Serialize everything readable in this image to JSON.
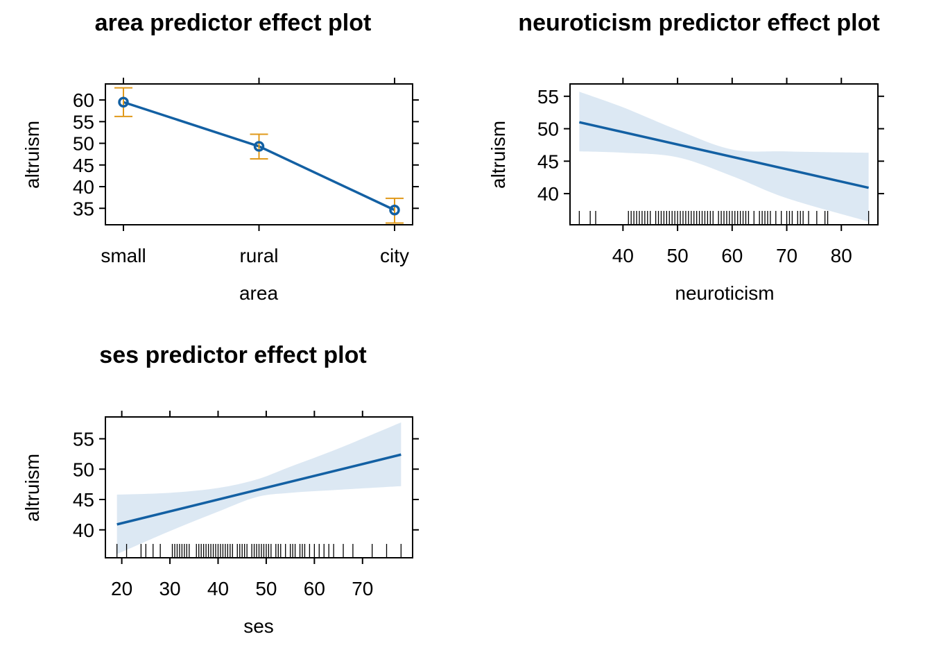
{
  "chart_data": [
    {
      "type": "line",
      "title": "area predictor effect plot",
      "xlabel": "area",
      "ylabel": "altruism",
      "categories": [
        "small",
        "rural",
        "city"
      ],
      "values": [
        59.5,
        49.3,
        34.6
      ],
      "lower": [
        56.2,
        46.4,
        31.6
      ],
      "upper": [
        62.8,
        52.1,
        37.3
      ],
      "ylim": [
        31.2,
        63.7
      ],
      "yticks": [
        35,
        40,
        45,
        50,
        55,
        60
      ],
      "colors": {
        "fit": "#1360a3",
        "ci": "#e0991a"
      }
    },
    {
      "type": "line",
      "title": "neuroticism predictor effect plot",
      "xlabel": "neuroticism",
      "ylabel": "altruism",
      "x": [
        32,
        85
      ],
      "y": [
        51.0,
        40.9
      ],
      "band_x": [
        32,
        40,
        50,
        60,
        70,
        85
      ],
      "band_lower": [
        46.5,
        46.3,
        45.6,
        42.7,
        39.3,
        35.7
      ],
      "band_upper": [
        55.7,
        53.3,
        49.8,
        46.8,
        46.5,
        46.3
      ],
      "xlim": [
        30.3,
        86.7
      ],
      "ylim": [
        35.2,
        56.9
      ],
      "xticks": [
        40,
        50,
        60,
        70,
        80
      ],
      "yticks": [
        40,
        45,
        50,
        55
      ],
      "rug": [
        32,
        34,
        35,
        41,
        41.5,
        42,
        42.5,
        43,
        43.5,
        44,
        44.5,
        45,
        46,
        46.5,
        47,
        47.5,
        48,
        48.5,
        49,
        49.5,
        50,
        50.5,
        51,
        51.5,
        52,
        52.5,
        53,
        53.5,
        54,
        54.5,
        55,
        55.5,
        56,
        56.5,
        57.5,
        58,
        58.5,
        59,
        59.5,
        60,
        60.5,
        61,
        61.5,
        62,
        62.5,
        63,
        64,
        65,
        65.5,
        66,
        66.5,
        67,
        68,
        69,
        70,
        70.5,
        71,
        72,
        72.5,
        73,
        74,
        75.5,
        77,
        77.5,
        85
      ],
      "colors": {
        "fit": "#1360a3",
        "band": "#dce8f3"
      }
    },
    {
      "type": "line",
      "title": "ses predictor effect plot",
      "xlabel": "ses",
      "ylabel": "altruism",
      "x": [
        19,
        78
      ],
      "y": [
        40.9,
        52.4
      ],
      "band_x": [
        19,
        30,
        40,
        48,
        55,
        65,
        78
      ],
      "band_lower": [
        36.0,
        39.8,
        43.0,
        45.4,
        46.1,
        46.6,
        47.2
      ],
      "band_upper": [
        45.8,
        46.1,
        46.9,
        48.3,
        50.4,
        53.4,
        57.7
      ],
      "xlim": [
        16.6,
        80.4
      ],
      "ylim": [
        35.4,
        58.6
      ],
      "xticks": [
        20,
        30,
        40,
        50,
        60,
        70
      ],
      "yticks": [
        40,
        45,
        50,
        55
      ],
      "rug": [
        19,
        21,
        24,
        25,
        26.5,
        28,
        30.5,
        31,
        31.5,
        32,
        32.5,
        33,
        33.5,
        34,
        35.5,
        36,
        36.5,
        37,
        37.5,
        38,
        38.5,
        39,
        39.5,
        40,
        40.5,
        41,
        41.5,
        42,
        42.5,
        43,
        44,
        44.5,
        45,
        45.5,
        46,
        47,
        47.5,
        48,
        48.5,
        49,
        49.5,
        50,
        50.5,
        51,
        52,
        52.5,
        53,
        54,
        55,
        55.5,
        56,
        57,
        57.5,
        58,
        59,
        60,
        61,
        62,
        63,
        64,
        66,
        68,
        72,
        75,
        78
      ],
      "colors": {
        "fit": "#1360a3",
        "band": "#dce8f3"
      }
    }
  ]
}
